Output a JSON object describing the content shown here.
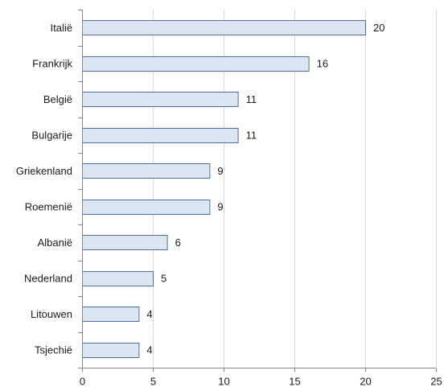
{
  "chart_data": {
    "type": "bar",
    "orientation": "horizontal",
    "categories": [
      "Italië",
      "Frankrijk",
      "België",
      "Bulgarije",
      "Griekenland",
      "Roemenië",
      "Albanië",
      "Nederland",
      "Litouwen",
      "Tsjechië"
    ],
    "values": [
      20,
      16,
      11,
      11,
      9,
      9,
      6,
      5,
      4,
      4
    ],
    "title": "",
    "xlabel": "",
    "ylabel": "",
    "xlim": [
      0,
      25
    ],
    "xticks": [
      0,
      5,
      10,
      15,
      20,
      25
    ],
    "grid": "vertical",
    "data_labels": true,
    "legend": "none",
    "colors": {
      "bar_fill": "#dce6f2",
      "bar_stroke": "#4a6fa5",
      "grid": "#d9d9d9",
      "axis": "#868686"
    }
  }
}
